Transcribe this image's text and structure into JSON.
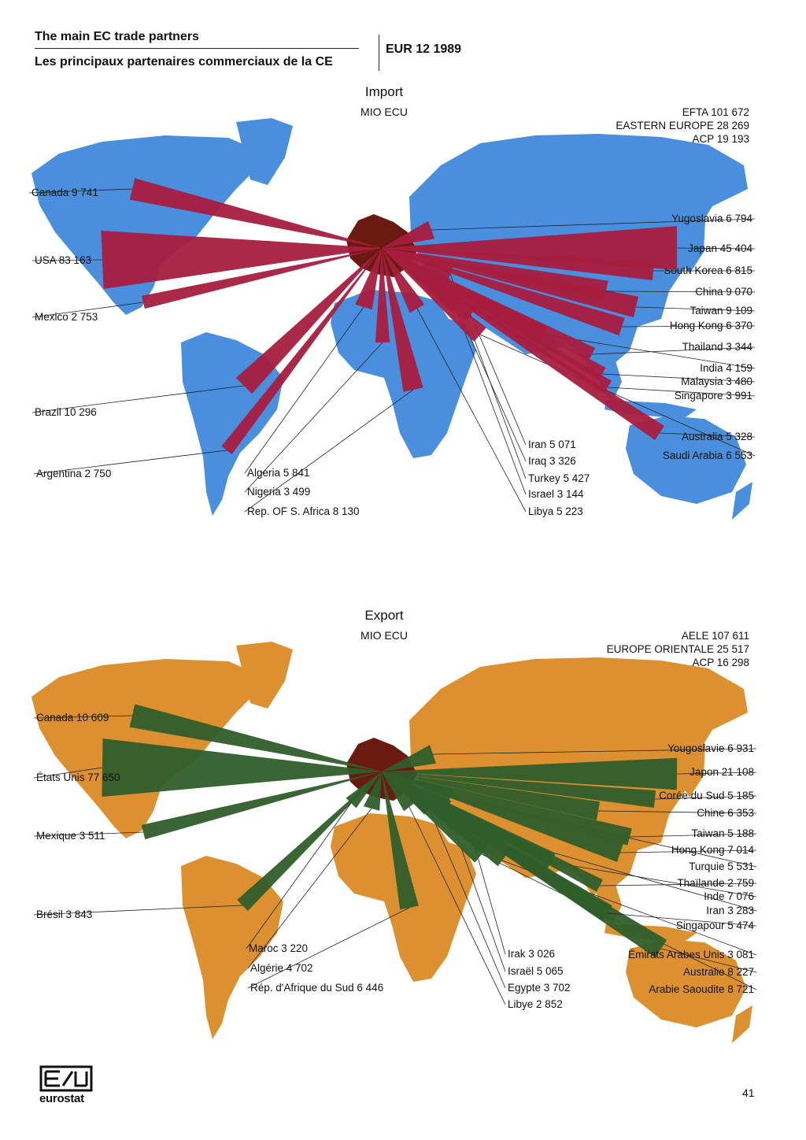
{
  "header": {
    "title_en": "The main EC trade partners",
    "title_fr": "Les principaux partenaires commerciaux de la CE",
    "subtitle": "EUR 12 1989"
  },
  "colors": {
    "import_land": "#4a8fde",
    "export_land": "#dc9030",
    "import_bar": "#a61d3e",
    "export_bar": "#2f5e2b",
    "europe": "#6b1a10"
  },
  "chart_data": [
    {
      "type": "bar",
      "title": "Import",
      "unit": "MIO ECU",
      "region_totals": [
        "EFTA 101 672",
        "EASTERN EUROPE 28 269",
        "ACP 19 193"
      ],
      "categories": [
        "Canada",
        "USA",
        "Mexico",
        "Brazil",
        "Argentina",
        "Algeria",
        "Nigeria",
        "Rep. OF S. Africa",
        "Libya",
        "Israel",
        "Turkey",
        "Iraq",
        "Iran",
        "Saudi Arabia",
        "Australia",
        "Singapore",
        "Malaysia",
        "India",
        "Thailand",
        "Hong Kong",
        "Taiwan",
        "China",
        "South Korea",
        "Japan",
        "Yugoslavia"
      ],
      "values": [
        9741,
        83163,
        2753,
        10296,
        2750,
        5841,
        3499,
        8130,
        5223,
        3144,
        5427,
        3326,
        5071,
        6553,
        5328,
        3991,
        3480,
        4159,
        3344,
        6370,
        9109,
        9070,
        6815,
        45404,
        6794
      ],
      "labels": [
        "Canada 9 741",
        "USA 83 163",
        "Mexico 2 753",
        "Brazil 10 296",
        "Argentina 2 750",
        "Algeria 5 841",
        "Nigeria 3 499",
        "Rep. OF S. Africa 8 130",
        "Libya 5 223",
        "Israel 3 144",
        "Turkey 5 427",
        "Iraq 3 326",
        "Iran 5 071",
        "Saudi Arabia 6 553",
        "Australia 5 328",
        "Singapore 3 991",
        "Malaysia 3 480",
        "India 4 159",
        "Thailand 3 344",
        "Hong Kong 6 370",
        "Taiwan 9 109",
        "China 9 070",
        "South Korea 6 815",
        "Japan 45 404",
        "Yugoslavia 6 794"
      ]
    },
    {
      "type": "bar",
      "title": "Export",
      "unit": "MIO ECU",
      "region_totals": [
        "AELE 107 611",
        "EUROPE ORIENTALE 25 517",
        "ACP 16 298"
      ],
      "categories": [
        "Canada",
        "États Unis",
        "Mexique",
        "Brésil",
        "Maroc",
        "Algérie",
        "Rép. d'Afrique du Sud",
        "Libye",
        "Egypte",
        "Israël",
        "Irak",
        "Arabie Saoudite",
        "Australie",
        "Émirats Arabes Unis",
        "Singapour",
        "Iran",
        "Inde",
        "Thaïlande",
        "Turquie",
        "Hong Kong",
        "Taiwan",
        "Chine",
        "Corée du Sud",
        "Japon",
        "Yougoslavie"
      ],
      "values": [
        10609,
        77650,
        3511,
        3843,
        3220,
        4702,
        6446,
        2852,
        3702,
        5065,
        3026,
        8721,
        8227,
        3081,
        5474,
        3283,
        7076,
        2759,
        5531,
        7014,
        5188,
        6353,
        5185,
        21108,
        6931
      ],
      "labels": [
        "Canada 10 609",
        "États Unis 77 650",
        "Mexique 3 511",
        "Brésil 3 843",
        "Maroc 3 220",
        "Algérie 4 702",
        "Rép. d'Afrique du Sud 6 446",
        "Libye 2 852",
        "Egypte 3 702",
        "Israël 5 065",
        "Irak 3 026",
        "Arabie Saoudite 8 721",
        "Australie 8 227",
        "Émirats Arabes Unis 3 081",
        "Singapour 5 474",
        "Iran 3 283",
        "Inde 7 076",
        "Thaïlande 2 759",
        "Turquie 5 531",
        "Hong Kong 7 014",
        "Taiwan 5 188",
        "Chine 6 353",
        "Corée du Sud 5 185",
        "Japon 21 108",
        "Yougoslavie 6 931"
      ]
    }
  ],
  "footer": {
    "logo_text": "eurostat",
    "page_number": "41"
  }
}
